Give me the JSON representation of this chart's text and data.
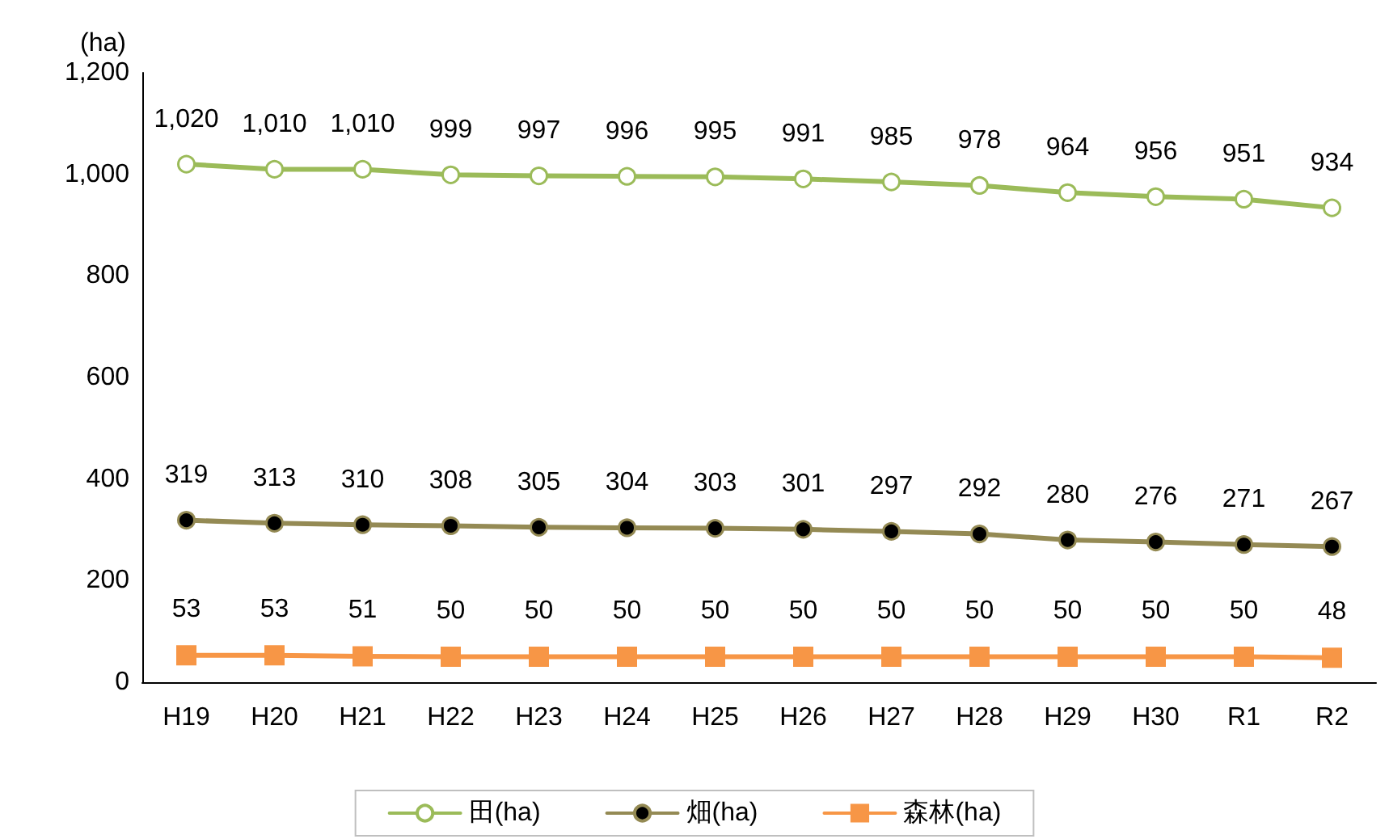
{
  "chart_data": {
    "type": "line",
    "ylabel": "(ha)",
    "categories": [
      "H19",
      "H20",
      "H21",
      "H22",
      "H23",
      "H24",
      "H25",
      "H26",
      "H27",
      "H28",
      "H29",
      "H30",
      "R1",
      "R2"
    ],
    "series": [
      {
        "name": "田(ha)",
        "color": "#9bbb59",
        "marker": "circle",
        "values": [
          1020,
          1010,
          1010,
          999,
          997,
          996,
          995,
          991,
          985,
          978,
          964,
          956,
          951,
          934
        ],
        "value_labels": [
          "1,020",
          "1,010",
          "1,010",
          "999",
          "997",
          "996",
          "995",
          "991",
          "985",
          "978",
          "964",
          "956",
          "951",
          "934"
        ]
      },
      {
        "name": "畑(ha)",
        "color": "#948a54",
        "marker": "circle",
        "values": [
          319,
          313,
          310,
          308,
          305,
          304,
          303,
          301,
          297,
          292,
          280,
          276,
          271,
          267
        ]
      },
      {
        "name": "森林(ha)",
        "color": "#f79646",
        "marker": "square",
        "values": [
          53,
          53,
          51,
          50,
          50,
          50,
          50,
          50,
          50,
          50,
          50,
          50,
          50,
          48
        ]
      }
    ],
    "ylim": [
      0,
      1200
    ],
    "yticks": [
      0,
      200,
      400,
      600,
      800,
      {
        "value": 1000,
        "label": "1,000"
      },
      {
        "value": 1200,
        "label": "1,200"
      }
    ],
    "grid": false,
    "legend": "bottom",
    "data_labels": true,
    "line_style": "solid"
  }
}
